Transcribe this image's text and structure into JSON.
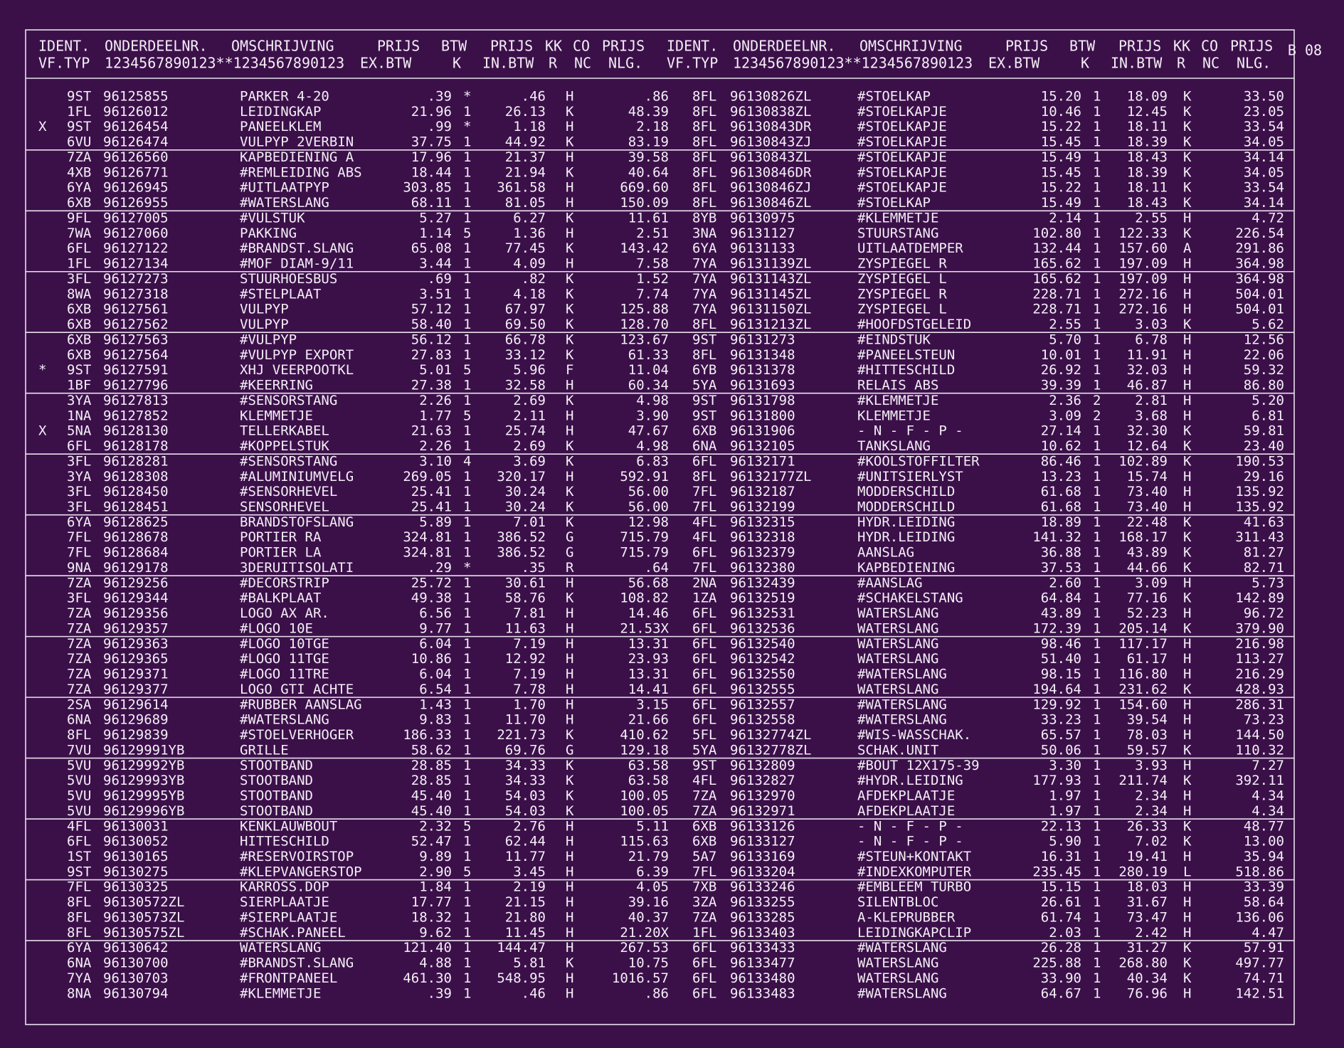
{
  "header": {
    "left": {
      "line1": [
        "IDENT.",
        "ONDERDEELNR.",
        "OMSCHRIJVING",
        "PRIJS",
        "BTW",
        "PRIJS",
        "KK",
        "CO",
        "PRIJS"
      ],
      "line2": [
        "VF.TYP",
        "1234567890123**1234567890123",
        "EX.BTW",
        "K",
        "IN.BTW",
        "R",
        "NC",
        "NLG."
      ]
    },
    "right": {
      "line1": [
        "IDENT.",
        "ONDERDEELNR.",
        "OMSCHRIJVING",
        "PRIJS",
        "BTW",
        "PRIJS",
        "KK",
        "CO",
        "PRIJS"
      ],
      "line2": [
        "VF.TYP",
        "1234567890123**1234567890123",
        "EX.BTW",
        "K",
        "IN.BTW",
        "R",
        "NC",
        "NLG."
      ]
    },
    "page": "B 08"
  },
  "table": {
    "rows": [
      [
        null,
        "9ST",
        "96125855",
        "PARKER 4-20",
        ".39",
        "*",
        ".46",
        "H",
        ".86",
        "8FL",
        "96130826ZL",
        "#STOELKAP",
        "15.20",
        "1",
        "18.09",
        "K",
        "33.50"
      ],
      [
        null,
        "1FL",
        "96126012",
        "LEIDINGKAP",
        "21.96",
        "1",
        "26.13",
        "K",
        "48.39",
        "8FL",
        "96130838ZL",
        "#STOELKAPJE",
        "10.46",
        "1",
        "12.45",
        "K",
        "23.05"
      ],
      [
        "X",
        "9ST",
        "96126454",
        "PANEELKLEM",
        ".99",
        "*",
        "1.18",
        "H",
        "2.18",
        "8FL",
        "96130843DR",
        "#STOELKAPJE",
        "15.22",
        "1",
        "18.11",
        "K",
        "33.54"
      ],
      [
        null,
        "6VU",
        "96126474",
        "VULPYP 2VERBIN",
        "37.75",
        "1",
        "44.92",
        "K",
        "83.19",
        "8FL",
        "96130843ZJ",
        "#STOELKAPJE",
        "15.45",
        "1",
        "18.39",
        "K",
        "34.05"
      ],
      [
        null,
        "7ZA",
        "96126560",
        "KAPBEDIENING A",
        "17.96",
        "1",
        "21.37",
        "H",
        "39.58",
        "8FL",
        "96130843ZL",
        "#STOELKAPJE",
        "15.49",
        "1",
        "18.43",
        "K",
        "34.14"
      ],
      [
        null,
        "4XB",
        "96126771",
        "#REMLEIDING ABS",
        "18.44",
        "1",
        "21.94",
        "K",
        "40.64",
        "8FL",
        "96130846DR",
        "#STOELKAPJE",
        "15.45",
        "1",
        "18.39",
        "K",
        "34.05"
      ],
      [
        null,
        "6YA",
        "96126945",
        "#UITLAATPYP",
        "303.85",
        "1",
        "361.58",
        "H",
        "669.60",
        "8FL",
        "96130846ZJ",
        "#STOELKAPJE",
        "15.22",
        "1",
        "18.11",
        "K",
        "33.54"
      ],
      [
        null,
        "6XB",
        "96126955",
        "#WATERSLANG",
        "68.11",
        "1",
        "81.05",
        "H",
        "150.09",
        "8FL",
        "96130846ZL",
        "#STOELKAP",
        "15.49",
        "1",
        "18.43",
        "K",
        "34.14"
      ],
      [
        null,
        "9FL",
        "96127005",
        "#VULSTUK",
        "5.27",
        "1",
        "6.27",
        "K",
        "11.61",
        "8YB",
        "96130975",
        "#KLEMMETJE",
        "2.14",
        "1",
        "2.55",
        "H",
        "4.72"
      ],
      [
        null,
        "7WA",
        "96127060",
        "PAKKING",
        "1.14",
        "5",
        "1.36",
        "H",
        "2.51",
        "3NA",
        "96131127",
        "STUURSTANG",
        "102.80",
        "1",
        "122.33",
        "K",
        "226.54"
      ],
      [
        null,
        "6FL",
        "96127122",
        "#BRANDST.SLANG",
        "65.08",
        "1",
        "77.45",
        "K",
        "143.42",
        "6YA",
        "96131133",
        "UITLAATDEMPER",
        "132.44",
        "1",
        "157.60",
        "A",
        "291.86"
      ],
      [
        null,
        "1FL",
        "96127134",
        "#MOF DIAM-9/11",
        "3.44",
        "1",
        "4.09",
        "H",
        "7.58",
        "7YA",
        "96131139ZL",
        "ZYSPIEGEL R",
        "165.62",
        "1",
        "197.09",
        "H",
        "364.98"
      ],
      [
        null,
        "3FL",
        "96127273",
        "STUURHOESBUS",
        ".69",
        "1",
        ".82",
        "K",
        "1.52",
        "7YA",
        "96131143ZL",
        "ZYSPIEGEL L",
        "165.62",
        "1",
        "197.09",
        "H",
        "364.98"
      ],
      [
        null,
        "8WA",
        "96127318",
        "#STELPLAAT",
        "3.51",
        "1",
        "4.18",
        "K",
        "7.74",
        "7YA",
        "96131145ZL",
        "ZYSPIEGEL R",
        "228.71",
        "1",
        "272.16",
        "H",
        "504.01"
      ],
      [
        null,
        "6XB",
        "96127561",
        "VULPYP",
        "57.12",
        "1",
        "67.97",
        "K",
        "125.88",
        "7YA",
        "96131150ZL",
        "ZYSPIEGEL L",
        "228.71",
        "1",
        "272.16",
        "H",
        "504.01"
      ],
      [
        null,
        "6XB",
        "96127562",
        "VULPYP",
        "58.40",
        "1",
        "69.50",
        "K",
        "128.70",
        "8FL",
        "96131213ZL",
        "#HOOFDSTGELEID",
        "2.55",
        "1",
        "3.03",
        "K",
        "5.62"
      ],
      [
        null,
        "6XB",
        "96127563",
        "#VULPYP",
        "56.12",
        "1",
        "66.78",
        "K",
        "123.67",
        "9ST",
        "96131273",
        "#EINDSTUK",
        "5.70",
        "1",
        "6.78",
        "H",
        "12.56"
      ],
      [
        null,
        "6XB",
        "96127564",
        "#VULPYP EXPORT",
        "27.83",
        "1",
        "33.12",
        "K",
        "61.33",
        "8FL",
        "96131348",
        "#PANEELSTEUN",
        "10.01",
        "1",
        "11.91",
        "H",
        "22.06"
      ],
      [
        "*",
        "9ST",
        "96127591",
        "XHJ VEERPOOTKL",
        "5.01",
        "5",
        "5.96",
        "F",
        "11.04",
        "6YB",
        "96131378",
        "#HITTESCHILD",
        "26.92",
        "1",
        "32.03",
        "H",
        "59.32"
      ],
      [
        null,
        "1BF",
        "96127796",
        "#KEERRING",
        "27.38",
        "1",
        "32.58",
        "H",
        "60.34",
        "5YA",
        "96131693",
        "RELAIS ABS",
        "39.39",
        "1",
        "46.87",
        "H",
        "86.80"
      ],
      [
        null,
        "3YA",
        "96127813",
        "#SENSORSTANG",
        "2.26",
        "1",
        "2.69",
        "K",
        "4.98",
        "9ST",
        "96131798",
        "#KLEMMETJE",
        "2.36",
        "2",
        "2.81",
        "H",
        "5.20"
      ],
      [
        null,
        "1NA",
        "96127852",
        "KLEMMETJE",
        "1.77",
        "5",
        "2.11",
        "H",
        "3.90",
        "9ST",
        "96131800",
        "KLEMMETJE",
        "3.09",
        "2",
        "3.68",
        "H",
        "6.81"
      ],
      [
        "X",
        "5NA",
        "96128130",
        "TELLERKABEL",
        "21.63",
        "1",
        "25.74",
        "H",
        "47.67",
        "6XB",
        "96131906",
        "- N - F - P -",
        "27.14",
        "1",
        "32.30",
        "K",
        "59.81"
      ],
      [
        null,
        "6FL",
        "96128178",
        "#KOPPELSTUK",
        "2.26",
        "1",
        "2.69",
        "K",
        "4.98",
        "6NA",
        "96132105",
        "TANKSLANG",
        "10.62",
        "1",
        "12.64",
        "K",
        "23.40"
      ],
      [
        null,
        "3FL",
        "96128281",
        "#SENSORSTANG",
        "3.10",
        "4",
        "3.69",
        "K",
        "6.83",
        "6FL",
        "96132171",
        "#KOOLSTOFFILTER",
        "86.46",
        "1",
        "102.89",
        "K",
        "190.53"
      ],
      [
        null,
        "3YA",
        "96128308",
        "#ALUMINIUMVELG",
        "269.05",
        "1",
        "320.17",
        "H",
        "592.91",
        "8FL",
        "96132177ZL",
        "#UNITSIERLYST",
        "13.23",
        "1",
        "15.74",
        "H",
        "29.16"
      ],
      [
        null,
        "3FL",
        "96128450",
        "#SENSORHEVEL",
        "25.41",
        "1",
        "30.24",
        "K",
        "56.00",
        "7FL",
        "96132187",
        "MODDERSCHILD",
        "61.68",
        "1",
        "73.40",
        "H",
        "135.92"
      ],
      [
        null,
        "3FL",
        "96128451",
        "SENSORHEVEL",
        "25.41",
        "1",
        "30.24",
        "K",
        "56.00",
        "7FL",
        "96132199",
        "MODDERSCHILD",
        "61.68",
        "1",
        "73.40",
        "H",
        "135.92"
      ],
      [
        null,
        "6YA",
        "96128625",
        "BRANDSTOFSLANG",
        "5.89",
        "1",
        "7.01",
        "K",
        "12.98",
        "4FL",
        "96132315",
        "HYDR.LEIDING",
        "18.89",
        "1",
        "22.48",
        "K",
        "41.63"
      ],
      [
        null,
        "7FL",
        "96128678",
        "PORTIER RA",
        "324.81",
        "1",
        "386.52",
        "G",
        "715.79",
        "4FL",
        "96132318",
        "HYDR.LEIDING",
        "141.32",
        "1",
        "168.17",
        "K",
        "311.43"
      ],
      [
        null,
        "7FL",
        "96128684",
        "PORTIER LA",
        "324.81",
        "1",
        "386.52",
        "G",
        "715.79",
        "6FL",
        "96132379",
        "AANSLAG",
        "36.88",
        "1",
        "43.89",
        "K",
        "81.27"
      ],
      [
        null,
        "9NA",
        "96129178",
        "3DERUITISOLATI",
        ".29",
        "*",
        ".35",
        "R",
        ".64",
        "7FL",
        "96132380",
        "KAPBEDIENING",
        "37.53",
        "1",
        "44.66",
        "K",
        "82.71"
      ],
      [
        null,
        "7ZA",
        "96129256",
        "#DECORSTRIP",
        "25.72",
        "1",
        "30.61",
        "H",
        "56.68",
        "2NA",
        "96132439",
        "#AANSLAG",
        "2.60",
        "1",
        "3.09",
        "H",
        "5.73"
      ],
      [
        null,
        "3FL",
        "96129344",
        "#BALKPLAAT",
        "49.38",
        "1",
        "58.76",
        "K",
        "108.82",
        "1ZA",
        "96132519",
        "#SCHAKELSTANG",
        "64.84",
        "1",
        "77.16",
        "K",
        "142.89"
      ],
      [
        null,
        "7ZA",
        "96129356",
        "LOGO AX AR.",
        "6.56",
        "1",
        "7.81",
        "H",
        "14.46",
        "6FL",
        "96132531",
        "WATERSLANG",
        "43.89",
        "1",
        "52.23",
        "H",
        "96.72"
      ],
      [
        null,
        "7ZA",
        "96129357",
        "#LOGO 10E",
        "9.77",
        "1",
        "11.63",
        "H",
        "21.53X",
        "6FL",
        "96132536",
        "WATERSLANG",
        "172.39",
        "1",
        "205.14",
        "K",
        "379.90"
      ],
      [
        null,
        "7ZA",
        "96129363",
        "#LOGO 10TGE",
        "6.04",
        "1",
        "7.19",
        "H",
        "13.31",
        "6FL",
        "96132540",
        "WATERSLANG",
        "98.46",
        "1",
        "117.17",
        "H",
        "216.98"
      ],
      [
        null,
        "7ZA",
        "96129365",
        "#LOGO 11TGE",
        "10.86",
        "1",
        "12.92",
        "H",
        "23.93",
        "6FL",
        "96132542",
        "WATERSLANG",
        "51.40",
        "1",
        "61.17",
        "H",
        "113.27"
      ],
      [
        null,
        "7ZA",
        "96129371",
        "#LOGO 11TRE",
        "6.04",
        "1",
        "7.19",
        "H",
        "13.31",
        "6FL",
        "96132550",
        "#WATERSLANG",
        "98.15",
        "1",
        "116.80",
        "H",
        "216.29"
      ],
      [
        null,
        "7ZA",
        "96129377",
        "LOGO GTI ACHTE",
        "6.54",
        "1",
        "7.78",
        "H",
        "14.41",
        "6FL",
        "96132555",
        "WATERSLANG",
        "194.64",
        "1",
        "231.62",
        "K",
        "428.93"
      ],
      [
        null,
        "2SA",
        "96129614",
        "#RUBBER AANSLAG",
        "1.43",
        "1",
        "1.70",
        "H",
        "3.15",
        "6FL",
        "96132557",
        "#WATERSLANG",
        "129.92",
        "1",
        "154.60",
        "H",
        "286.31"
      ],
      [
        null,
        "6NA",
        "96129689",
        "#WATERSLANG",
        "9.83",
        "1",
        "11.70",
        "H",
        "21.66",
        "6FL",
        "96132558",
        "#WATERSLANG",
        "33.23",
        "1",
        "39.54",
        "H",
        "73.23"
      ],
      [
        null,
        "8FL",
        "96129839",
        "#STOELVERHOGER",
        "186.33",
        "1",
        "221.73",
        "K",
        "410.62",
        "5FL",
        "96132774ZL",
        "#WIS-WASSCHAK.",
        "65.57",
        "1",
        "78.03",
        "H",
        "144.50"
      ],
      [
        null,
        "7VU",
        "96129991YB",
        "GRILLE",
        "58.62",
        "1",
        "69.76",
        "G",
        "129.18",
        "5YA",
        "96132778ZL",
        "SCHAK.UNIT",
        "50.06",
        "1",
        "59.57",
        "K",
        "110.32"
      ],
      [
        null,
        "5VU",
        "96129992YB",
        "STOOTBAND",
        "28.85",
        "1",
        "34.33",
        "K",
        "63.58",
        "9ST",
        "96132809",
        "#BOUT 12X175-39",
        "3.30",
        "1",
        "3.93",
        "H",
        "7.27"
      ],
      [
        null,
        "5VU",
        "96129993YB",
        "STOOTBAND",
        "28.85",
        "1",
        "34.33",
        "K",
        "63.58",
        "4FL",
        "96132827",
        "#HYDR.LEIDING",
        "177.93",
        "1",
        "211.74",
        "K",
        "392.11"
      ],
      [
        null,
        "5VU",
        "96129995YB",
        "STOOTBAND",
        "45.40",
        "1",
        "54.03",
        "K",
        "100.05",
        "7ZA",
        "96132970",
        "AFDEKPLAATJE",
        "1.97",
        "1",
        "2.34",
        "H",
        "4.34"
      ],
      [
        null,
        "5VU",
        "96129996YB",
        "STOOTBAND",
        "45.40",
        "1",
        "54.03",
        "K",
        "100.05",
        "7ZA",
        "96132971",
        "AFDEKPLAATJE",
        "1.97",
        "1",
        "2.34",
        "H",
        "4.34"
      ],
      [
        null,
        "4FL",
        "96130031",
        "KENKLAUWBOUT",
        "2.32",
        "5",
        "2.76",
        "H",
        "5.11",
        "6XB",
        "96133126",
        "- N - F - P -",
        "22.13",
        "1",
        "26.33",
        "K",
        "48.77"
      ],
      [
        null,
        "6FL",
        "96130052",
        "HITTESCHILD",
        "52.47",
        "1",
        "62.44",
        "H",
        "115.63",
        "6XB",
        "96133127",
        "- N - F - P -",
        "5.90",
        "1",
        "7.02",
        "K",
        "13.00"
      ],
      [
        null,
        "1ST",
        "96130165",
        "#RESERVOIRSTOP",
        "9.89",
        "1",
        "11.77",
        "H",
        "21.79",
        "5A7",
        "96133169",
        "#STEUN+KONTAKT",
        "16.31",
        "1",
        "19.41",
        "H",
        "35.94"
      ],
      [
        null,
        "9ST",
        "96130275",
        "#KLEPVANGERSTOP",
        "2.90",
        "5",
        "3.45",
        "H",
        "6.39",
        "7FL",
        "96133204",
        "#INDEXKOMPUTER",
        "235.45",
        "1",
        "280.19",
        "L",
        "518.86"
      ],
      [
        null,
        "7FL",
        "96130325",
        "KARROSS.DOP",
        "1.84",
        "1",
        "2.19",
        "H",
        "4.05",
        "7XB",
        "96133246",
        "#EMBLEEM TURBO",
        "15.15",
        "1",
        "18.03",
        "H",
        "33.39"
      ],
      [
        null,
        "8FL",
        "96130572ZL",
        "SIERPLAATJE",
        "17.77",
        "1",
        "21.15",
        "H",
        "39.16",
        "3ZA",
        "96133255",
        "SILENTBLOC",
        "26.61",
        "1",
        "31.67",
        "H",
        "58.64"
      ],
      [
        null,
        "8FL",
        "96130573ZL",
        "#SIERPLAATJE",
        "18.32",
        "1",
        "21.80",
        "H",
        "40.37",
        "7ZA",
        "96133285",
        "A-KLEPRUBBER",
        "61.74",
        "1",
        "73.47",
        "H",
        "136.06"
      ],
      [
        null,
        "8FL",
        "96130575ZL",
        "#SCHAK.PANEEL",
        "9.62",
        "1",
        "11.45",
        "H",
        "21.20X",
        "1FL",
        "96133403",
        "LEIDINGKAPCLIP",
        "2.03",
        "1",
        "2.42",
        "H",
        "4.47"
      ],
      [
        null,
        "6YA",
        "96130642",
        "WATERSLANG",
        "121.40",
        "1",
        "144.47",
        "H",
        "267.53",
        "6FL",
        "96133433",
        "#WATERSLANG",
        "26.28",
        "1",
        "31.27",
        "K",
        "57.91"
      ],
      [
        null,
        "6NA",
        "96130700",
        "#BRANDST.SLANG",
        "4.88",
        "1",
        "5.81",
        "K",
        "10.75",
        "6FL",
        "96133477",
        "WATERSLANG",
        "225.88",
        "1",
        "268.80",
        "K",
        "497.77"
      ],
      [
        null,
        "7YA",
        "96130703",
        "#FRONTPANEEL",
        "461.30",
        "1",
        "548.95",
        "H",
        "1016.57",
        "6FL",
        "96133480",
        "WATERSLANG",
        "33.90",
        "1",
        "40.34",
        "K",
        "74.71"
      ],
      [
        null,
        "8NA",
        "96130794",
        "#KLEMMETJE",
        ".39",
        "1",
        ".46",
        "H",
        ".86",
        "6FL",
        "96133483",
        "#WATERSLANG",
        "64.67",
        "1",
        "76.96",
        "H",
        "142.51"
      ]
    ]
  }
}
